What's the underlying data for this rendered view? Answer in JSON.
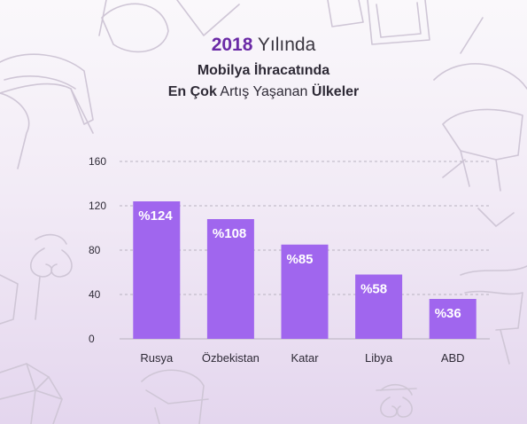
{
  "header": {
    "year": "2018",
    "year_suffix": "Yılında",
    "line2": "Mobilya İhracatında",
    "line3_bold1": "En Çok",
    "line3_mid": "Artış Yaşanan",
    "line3_bold2": "Ülkeler"
  },
  "colors": {
    "bar": "#a066ee",
    "accent": "#6a2aa6",
    "grid": "#b9b2c0",
    "text": "#2e2a36"
  },
  "chart_data": {
    "type": "bar",
    "categories": [
      "Rusya",
      "Özbekistan",
      "Katar",
      "Libya",
      "ABD"
    ],
    "values": [
      124,
      108,
      85,
      58,
      36
    ],
    "data_labels": [
      "%124",
      "%108",
      "%85",
      "%58",
      "%36"
    ],
    "yticks": [
      0,
      40,
      80,
      120,
      160
    ],
    "ylim": [
      0,
      160
    ],
    "grid": true
  }
}
